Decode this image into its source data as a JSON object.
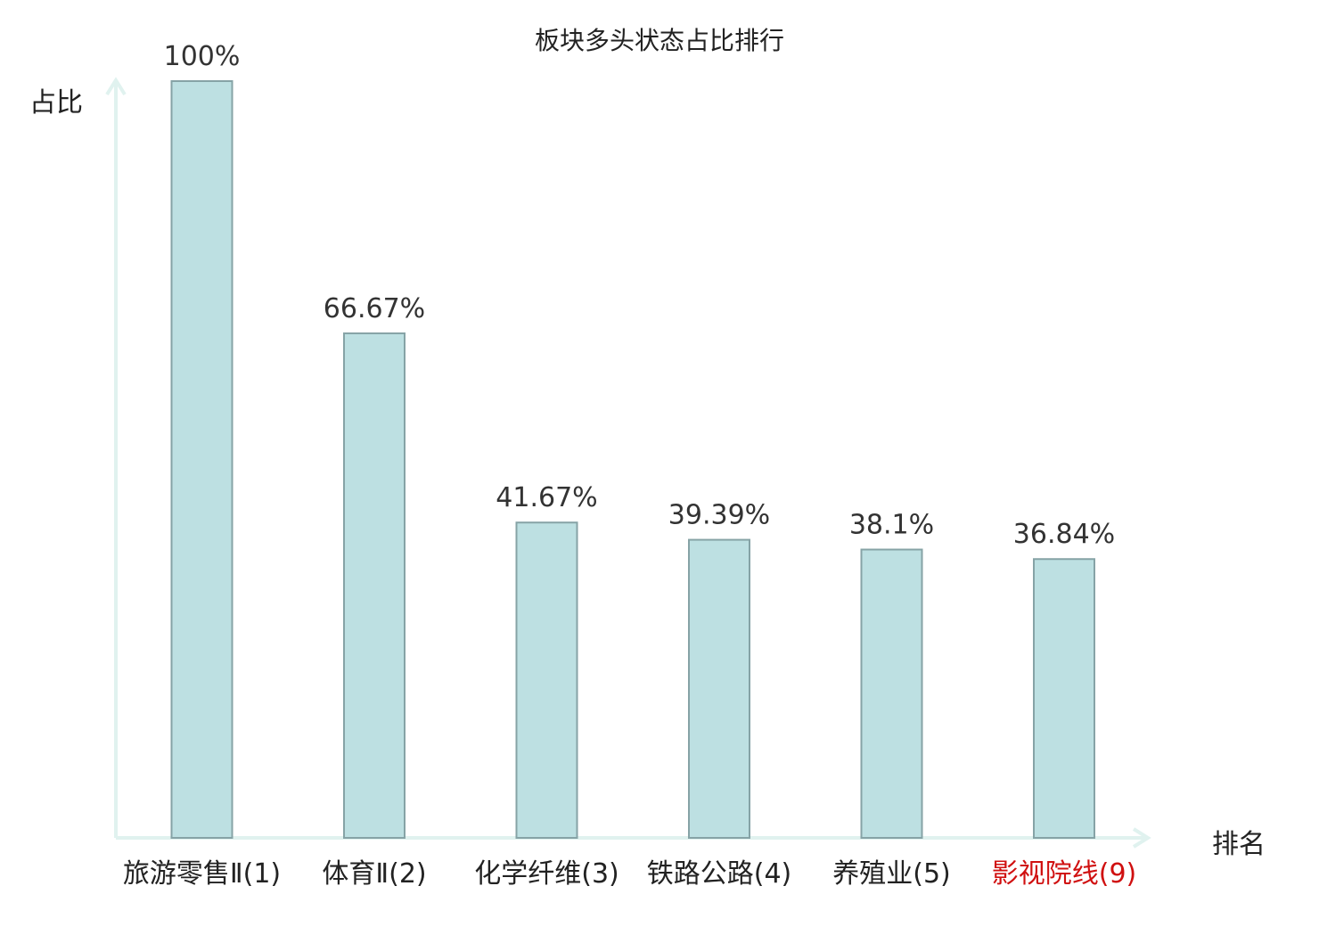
{
  "chart_data": {
    "type": "bar",
    "title": "板块多头状态占比排行",
    "xlabel": "排名",
    "ylabel": "占比",
    "categories": [
      "旅游零售Ⅱ(1)",
      "体育Ⅱ(2)",
      "化学纤维(3)",
      "铁路公路(4)",
      "养殖业(5)",
      "影视院线(9)"
    ],
    "values": [
      100,
      66.67,
      41.67,
      39.39,
      38.1,
      36.84
    ],
    "value_labels": [
      "100%",
      "66.67%",
      "41.67%",
      "39.39%",
      "38.1%",
      "36.84%"
    ],
    "ylim": [
      0,
      100
    ],
    "grid": false,
    "colors": {
      "bar_fill": "#bde0e2",
      "bar_stroke": "#86a3a6",
      "axis": "#e0f2ef",
      "text": "#222222",
      "highlight_text": "#d01010"
    },
    "highlight_category": "影视院线(9)"
  }
}
